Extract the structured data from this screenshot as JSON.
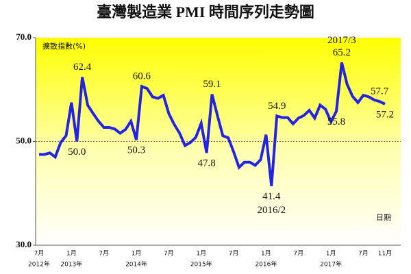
{
  "chart_data": {
    "type": "line",
    "title": "臺灣製造業 PMI 時間序列走勢圖",
    "ylabel": "擴散指數(%)",
    "xlabel": "日期",
    "color": "#2323e6",
    "ylim": [
      30,
      70
    ],
    "yticks": [
      {
        "value": 30,
        "label": "30.0"
      },
      {
        "value": 50,
        "label": "50.0"
      },
      {
        "value": 70,
        "label": "70.0"
      }
    ],
    "reference_line": 50,
    "categories": [
      "7月",
      null,
      null,
      null,
      null,
      null,
      "1月",
      null,
      null,
      null,
      null,
      null,
      "7月",
      null,
      null,
      null,
      null,
      null,
      "1月",
      null,
      null,
      null,
      null,
      null,
      "7月",
      null,
      null,
      null,
      null,
      null,
      "1月",
      null,
      null,
      null,
      null,
      null,
      "7月",
      null,
      null,
      null,
      null,
      null,
      "1月",
      null,
      null,
      null,
      null,
      null,
      "7月",
      null,
      null,
      null,
      null,
      null,
      "1月",
      null,
      null,
      null,
      null,
      null,
      "7月",
      null,
      null,
      null,
      "11月"
    ],
    "category_years": [
      "2012年",
      null,
      null,
      null,
      null,
      null,
      "2013年",
      null,
      null,
      null,
      null,
      null,
      null,
      null,
      null,
      null,
      null,
      null,
      "2014年",
      null,
      null,
      null,
      null,
      null,
      null,
      null,
      null,
      null,
      null,
      null,
      "2015年",
      null,
      null,
      null,
      null,
      null,
      null,
      null,
      null,
      null,
      null,
      null,
      "2016年",
      null,
      null,
      null,
      null,
      null,
      null,
      null,
      null,
      null,
      null,
      null,
      "2017年",
      null,
      null,
      null,
      null,
      null,
      null,
      null,
      null,
      null,
      null
    ],
    "values": [
      47.5,
      47.5,
      47.8,
      47.0,
      49.8,
      51.1,
      57.5,
      50.0,
      62.4,
      57.0,
      55.4,
      53.9,
      52.7,
      52.7,
      52.4,
      51.6,
      52.3,
      53.9,
      50.3,
      60.6,
      60.2,
      58.6,
      58.3,
      58.9,
      55.4,
      53.3,
      51.6,
      49.2,
      49.8,
      50.8,
      53.5,
      47.8,
      59.1,
      55.0,
      51.1,
      50.7,
      48.0,
      45.0,
      46.0,
      46.0,
      45.4,
      46.5,
      51.3,
      41.4,
      54.9,
      54.6,
      54.6,
      53.4,
      54.5,
      55.0,
      56.0,
      54.5,
      57.0,
      56.2,
      53.8,
      55.8,
      65.2,
      61.0,
      58.7,
      57.5,
      58.9,
      58.6,
      58.0,
      57.7,
      57.2
    ],
    "value_labels": [
      null,
      null,
      null,
      null,
      null,
      null,
      null,
      "50.0",
      "62.4",
      null,
      null,
      null,
      null,
      null,
      null,
      null,
      null,
      null,
      "50.3",
      "60.6",
      null,
      null,
      null,
      null,
      null,
      null,
      null,
      null,
      null,
      null,
      null,
      "47.8",
      "59.1",
      null,
      null,
      null,
      null,
      null,
      null,
      null,
      null,
      null,
      null,
      "41.4",
      "54.9",
      null,
      null,
      null,
      null,
      null,
      null,
      null,
      null,
      null,
      null,
      "55.8",
      "65.2",
      null,
      null,
      null,
      null,
      null,
      null,
      "57.7",
      "57.2"
    ],
    "date_labels": [
      null,
      null,
      null,
      null,
      null,
      null,
      null,
      null,
      null,
      null,
      null,
      null,
      null,
      null,
      null,
      null,
      null,
      null,
      null,
      null,
      null,
      null,
      null,
      null,
      null,
      null,
      null,
      null,
      null,
      null,
      null,
      null,
      null,
      null,
      null,
      null,
      null,
      null,
      null,
      null,
      null,
      null,
      null,
      "2016/2",
      null,
      null,
      null,
      null,
      null,
      null,
      null,
      null,
      null,
      null,
      null,
      null,
      "2017/3",
      null,
      null,
      null,
      null,
      null,
      null,
      null,
      null
    ]
  }
}
